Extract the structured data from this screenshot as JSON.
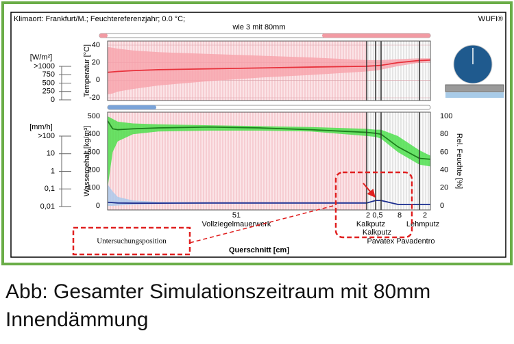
{
  "header": {
    "left": "Klimaort: Frankfurt/M.; Feuchtereferenzjahr; 0.0 °C;",
    "right": "WUFI®",
    "subtitle": "wie 3 mit 80mm"
  },
  "radiation_scale": {
    "label": "[W/m²]",
    "ylim": [
      0,
      1000
    ],
    "ticks": [
      {
        "value": 1000,
        "label": ">1000"
      },
      750,
      500,
      250,
      0
    ]
  },
  "rain_scale": {
    "label": "[mm/h]",
    "log": true,
    "ylim": [
      0.01,
      100
    ],
    "ticks": [
      {
        "value": 100,
        "label": ">100"
      },
      10,
      1,
      {
        "value": 0.1,
        "label": "0,1"
      },
      {
        "value": 0.01,
        "label": "0,01"
      }
    ]
  },
  "cross_section": {
    "x_label": "Querschnitt [cm]",
    "layers": [
      {
        "thickness": 51,
        "name": "Vollziegelmauerwerk"
      },
      {
        "thickness": 2,
        "name": "Kalkputz"
      },
      {
        "thickness": {
          "value": 0.5,
          "label": "0,5"
        },
        "name": "Kalkputz"
      },
      {
        "thickness": 8,
        "name": "Pavatex Pavadentro"
      },
      {
        "thickness": 2,
        "name": "Lehmputz"
      }
    ]
  },
  "chart_data": [
    {
      "type": "line",
      "y_label": "Temperatur [°C]",
      "ylim": [
        -20,
        40
      ],
      "yticks": [
        40,
        20,
        0,
        -20
      ],
      "grid": true,
      "x": [
        0,
        1,
        2,
        5,
        10,
        20,
        30,
        40,
        51,
        53,
        53.5,
        57,
        61.5,
        63.5
      ],
      "series": [
        {
          "color": "#e8323c",
          "band_color": "#f7a3ab",
          "values": [
            9,
            9.5,
            10,
            11,
            12,
            13,
            14,
            15,
            16,
            16.5,
            17,
            20,
            22.5,
            23
          ],
          "band": {
            "upper": [
              38,
              37,
              36,
              34,
              32,
              30,
              28,
              26,
              23,
              23,
              23,
              24,
              25,
              25
            ],
            "lower": [
              -16,
              -15,
              -13,
              -10,
              -6,
              -1,
              3,
              6,
              10,
              11,
              12,
              16,
              20,
              21
            ]
          }
        }
      ]
    },
    {
      "type": "line",
      "y_label": "Wassergehalt [kg/m³]",
      "y2_label": "Rel. Feuchte [%]",
      "ylim": [
        0,
        500
      ],
      "yticks": [
        500,
        400,
        300,
        200,
        100,
        0
      ],
      "y2lim": [
        0,
        100
      ],
      "y2ticks": [
        100,
        80,
        60,
        40,
        20,
        0
      ],
      "x": [
        0,
        1,
        2,
        5,
        10,
        20,
        30,
        40,
        51,
        53,
        53.5,
        57,
        61.5,
        63.5
      ],
      "series": [
        {
          "color": "#1f2f8f",
          "band_color": "#a9c8ec",
          "values": [
            20,
            18,
            16,
            15,
            15,
            16,
            16,
            16,
            16,
            30,
            30,
            8,
            8,
            8
          ],
          "band": {
            "upper": [
              120,
              80,
              50,
              30,
              22,
              20,
              20,
              20,
              20,
              32,
              32,
              10,
              12,
              12
            ],
            "lower": [
              0,
              0,
              2,
              6,
              10,
              12,
              12,
              12,
              12,
              26,
              26,
              4,
              4,
              4
            ]
          }
        },
        {
          "color": "#1d7f1d",
          "band_color": "#45e045",
          "axis": "y2",
          "values": [
            95,
            86,
            85,
            86,
            87,
            88,
            87,
            85,
            82,
            81,
            80,
            66,
            53,
            52
          ],
          "band": {
            "upper": [
              100,
              97,
              94,
              92,
              91,
              90,
              89,
              88,
              86,
              85,
              85,
              78,
              62,
              56
            ],
            "lower": [
              20,
              60,
              72,
              80,
              83,
              84,
              84,
              83,
              78,
              77,
              75,
              60,
              46,
              44
            ]
          }
        }
      ]
    }
  ],
  "annotation": "Untersuchungsposition",
  "caption": [
    "Abb: Gesamter Simulationszeitraum mit 80mm",
    "Innendämmung"
  ]
}
